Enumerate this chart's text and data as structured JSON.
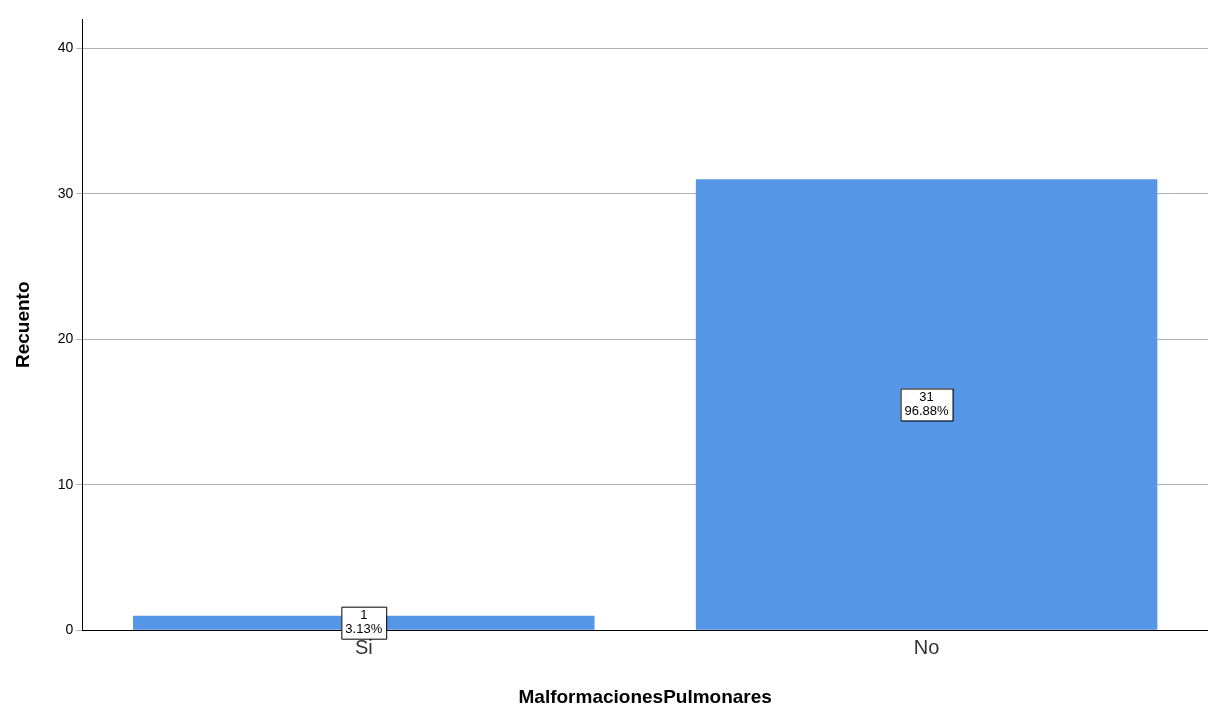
{
  "chart_data": {
    "type": "bar",
    "xlabel": "MalformacionesPulmonares",
    "ylabel": "Recuento",
    "categories": [
      "Si",
      "No"
    ],
    "values": [
      1,
      31
    ],
    "value_labels": [
      "1\n3.13%",
      "31\n96.88%"
    ],
    "color": "#5596e6",
    "ylim": [
      0,
      42
    ],
    "yticks": [
      0,
      10,
      20,
      30,
      40
    ],
    "grid": "y",
    "legend": false
  }
}
